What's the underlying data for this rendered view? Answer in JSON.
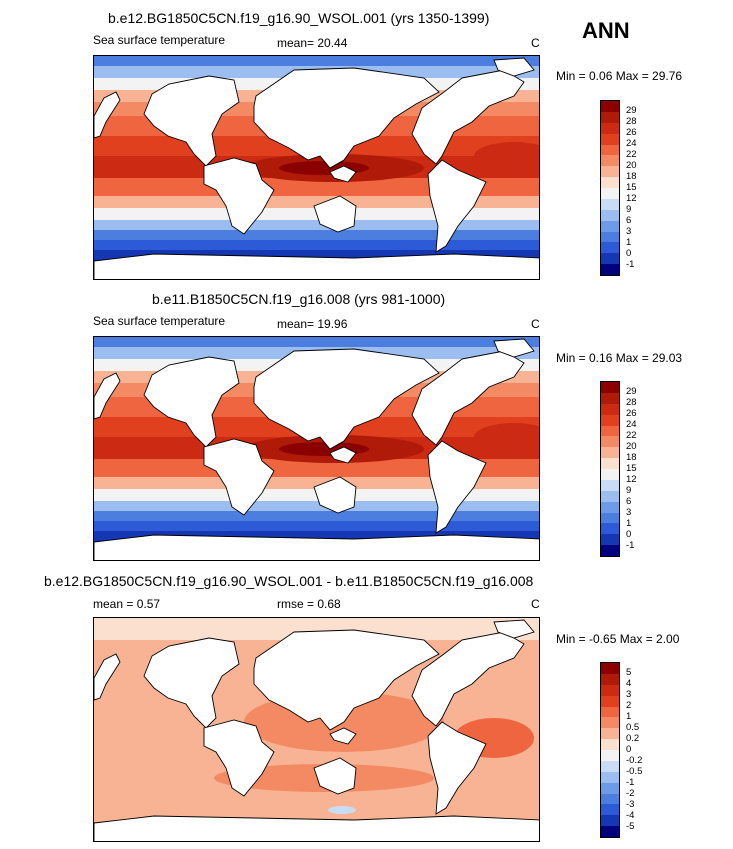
{
  "season": "ANN",
  "panels": [
    {
      "title": "b.e12.BG1850C5CN.f19_g16.90_WSOL.001 (yrs 1350-1399)",
      "left_label": "Sea surface temperature",
      "mean_text": "mean=  20.44",
      "unit": "C",
      "minmax": "Min =  0.06 Max =  29.76",
      "levels": [
        "29",
        "28",
        "26",
        "24",
        "22",
        "20",
        "18",
        "15",
        "12",
        "9",
        "6",
        "3",
        "1",
        "0",
        "-1"
      ],
      "colors": [
        "#8b0000",
        "#b01a08",
        "#cc2a12",
        "#e0401e",
        "#ee6540",
        "#f48a64",
        "#f8b394",
        "#fbe0d0",
        "#f3f3f3",
        "#c9dcf5",
        "#9bbdf0",
        "#6e9be8",
        "#4c7ee0",
        "#2d5ad6",
        "#1637b4",
        "#00007f"
      ],
      "field": "abs"
    },
    {
      "title": "b.e11.B1850C5CN.f19_g16.008 (yrs 981-1000)",
      "left_label": "Sea surface temperature",
      "mean_text": "mean=  19.96",
      "unit": "C",
      "minmax": "Min =  0.16 Max =  29.03",
      "levels": [
        "29",
        "28",
        "26",
        "24",
        "22",
        "20",
        "18",
        "15",
        "12",
        "9",
        "6",
        "3",
        "1",
        "0",
        "-1"
      ],
      "colors": [
        "#8b0000",
        "#b01a08",
        "#cc2a12",
        "#e0401e",
        "#ee6540",
        "#f48a64",
        "#f8b394",
        "#fbe0d0",
        "#f3f3f3",
        "#c9dcf5",
        "#9bbdf0",
        "#6e9be8",
        "#4c7ee0",
        "#2d5ad6",
        "#1637b4",
        "#00007f"
      ],
      "field": "abs"
    },
    {
      "title": "b.e12.BG1850C5CN.f19_g16.90_WSOL.001 - b.e11.B1850C5CN.f19_g16.008",
      "left_label": "mean =  0.57",
      "mean_text": "rmse =  0.68",
      "unit": "C",
      "minmax": "Min = -0.65 Max =  2.00",
      "levels": [
        "5",
        "4",
        "3",
        "2",
        "1",
        "0.5",
        "0.2",
        "0",
        "-0.2",
        "-0.5",
        "-1",
        "-2",
        "-3",
        "-4",
        "-5"
      ],
      "colors": [
        "#8b0000",
        "#b01a08",
        "#cc2a12",
        "#e0401e",
        "#ee6540",
        "#f48a64",
        "#f8b394",
        "#fbe0d0",
        "#f3f3f3",
        "#c9dcf5",
        "#9bbdf0",
        "#6e9be8",
        "#4c7ee0",
        "#2d5ad6",
        "#1637b4",
        "#00007f"
      ],
      "field": "diff"
    }
  ]
}
